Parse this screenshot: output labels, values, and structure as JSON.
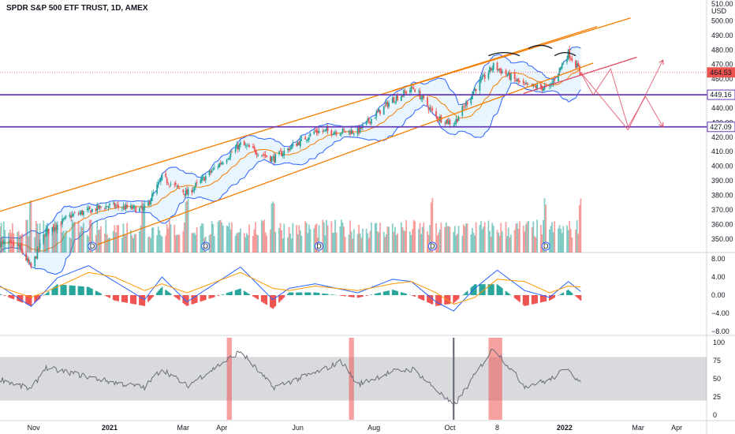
{
  "header": {
    "title": "SPDR S&P 500 ETF TRUST, 1D, AMEX",
    "currency": "USD"
  },
  "price_badges": [
    {
      "value": "464.53",
      "price": 464.53,
      "color": "#ef5350",
      "fill": true
    },
    {
      "value": "449.16",
      "price": 449.16,
      "color": "#673ab7",
      "fill": false
    },
    {
      "value": "427.09",
      "price": 427.09,
      "color": "#673ab7",
      "fill": false
    }
  ],
  "colors": {
    "up": "#26a69a",
    "down": "#ef5350",
    "trend": "#f57c00",
    "channel": "#e04860",
    "level": "#673ab7",
    "bollinger": "#2962ff",
    "macd": "#2962ff",
    "signal": "#ff9800",
    "rsi": "#6a6d78"
  },
  "chart_data": [
    {
      "type": "candlestick",
      "name": "price",
      "title": "SPDR S&P 500 ETF TRUST, 1D, AMEX",
      "ylabel": "USD",
      "ylim": [
        345,
        510
      ],
      "yticks": [
        350,
        360,
        370,
        380,
        390,
        400,
        410,
        420,
        430,
        440,
        450,
        460,
        470,
        480,
        490,
        500
      ],
      "ytick_labels": [
        "350.00",
        "360.00",
        "370.00",
        "380.00",
        "390.00",
        "400.00",
        "410.00",
        "420.00",
        "430.00",
        "440.00",
        "450.00",
        "460.00",
        "470.00",
        "480.00",
        "490.00",
        "500.00"
      ],
      "top_tick_label": "510.00",
      "x_labels": [
        {
          "label": "Nov",
          "date": "2020-11-01"
        },
        {
          "label": "2021",
          "date": "2021-01-01"
        },
        {
          "label": "Mar",
          "date": "2021-03-01"
        },
        {
          "label": "Apr",
          "date": "2021-04-01"
        },
        {
          "label": "Jun",
          "date": "2021-06-01"
        },
        {
          "label": "Aug",
          "date": "2021-08-01"
        },
        {
          "label": "Oct",
          "date": "2021-10-01"
        },
        {
          "label": "8",
          "date": "2021-11-08"
        },
        {
          "label": "2022",
          "date": "2022-01-01"
        },
        {
          "label": "Mar",
          "date": "2022-03-01"
        },
        {
          "label": "Apr",
          "date": "2022-04-01"
        }
      ],
      "x_range": [
        "2020-10-05",
        "2022-04-25"
      ],
      "price_path": [
        [
          "2020-10-05",
          347
        ],
        [
          "2020-10-20",
          345
        ],
        [
          "2020-10-30",
          330
        ],
        [
          "2020-11-10",
          354
        ],
        [
          "2020-12-01",
          366
        ],
        [
          "2020-12-31",
          373
        ],
        [
          "2021-01-29",
          370
        ],
        [
          "2021-02-12",
          392
        ],
        [
          "2021-03-04",
          381
        ],
        [
          "2021-04-16",
          415
        ],
        [
          "2021-05-12",
          405
        ],
        [
          "2021-06-15",
          424
        ],
        [
          "2021-07-19",
          424
        ],
        [
          "2021-08-16",
          446
        ],
        [
          "2021-09-02",
          454
        ],
        [
          "2021-09-20",
          434
        ],
        [
          "2021-10-04",
          429
        ],
        [
          "2021-10-21",
          453
        ],
        [
          "2021-11-05",
          469
        ],
        [
          "2021-11-30",
          455
        ],
        [
          "2021-12-20",
          454
        ],
        [
          "2022-01-04",
          478
        ],
        [
          "2022-01-14",
          464.53
        ]
      ],
      "trend_lines": [
        {
          "name": "upper-trend",
          "from": [
            "2020-10-05",
            369
          ],
          "to": [
            "2022-02-23",
            502
          ]
        },
        {
          "name": "upper-trend-2",
          "from": [
            "2021-08-16",
            452
          ],
          "to": [
            "2022-01-27",
            496
          ]
        },
        {
          "name": "lower-trend",
          "from": [
            "2020-12-22",
            346
          ],
          "to": [
            "2022-01-24",
            471
          ]
        },
        {
          "name": "channel-base",
          "from": [
            "2021-11-29",
            450
          ],
          "to": [
            "2022-02-28",
            475
          ]
        }
      ],
      "projection_path": [
        [
          "2022-01-14",
          464.5
        ],
        [
          "2022-01-24",
          449.0
        ],
        [
          "2022-02-07",
          467.0
        ],
        [
          "2022-02-21",
          427.0
        ],
        [
          "2022-03-07",
          448.0
        ],
        [
          "2022-03-21",
          427.0
        ]
      ],
      "projection_path_2": [
        [
          "2022-01-14",
          464.5
        ],
        [
          "2022-02-21",
          425.0
        ],
        [
          "2022-03-21",
          473.0
        ]
      ],
      "horizontal_levels": [
        449.16,
        427.09
      ],
      "current_price": 464.53,
      "dividend_markers": [
        "2020-12-18",
        "2021-03-19",
        "2021-06-18",
        "2021-09-17",
        "2021-12-17"
      ],
      "dividend_label": "D",
      "head_shoulders_arcs": [
        [
          "2021-11-01",
          "2021-11-26"
        ],
        [
          "2021-12-03",
          "2021-12-22"
        ],
        [
          "2021-12-24",
          "2022-01-10"
        ]
      ]
    },
    {
      "type": "bar",
      "name": "volume",
      "note": "volume bars share the price axis date range; magnitudes in relative units",
      "pattern": "high volume spikes near 2020-10-30, 2021-01-28, 2021-03-04, 2021-05-12, 2021-09-17, 2021-12-17, 2022-01-14"
    },
    {
      "type": "line",
      "name": "macd",
      "ylim": [
        -8,
        8
      ],
      "yticks": [
        8,
        4,
        0,
        -4,
        -8
      ],
      "ytick_labels": [
        "8.00",
        "4.00",
        "0.00",
        "−4.00",
        "−8.00"
      ],
      "series": [
        {
          "role": "macd",
          "values": [
            [
              "2020-10-05",
              2.0
            ],
            [
              "2020-10-30",
              -2.5
            ],
            [
              "2020-11-20",
              3.8
            ],
            [
              "2020-12-15",
              6.5
            ],
            [
              "2021-01-05",
              3.0
            ],
            [
              "2021-01-29",
              -1.0
            ],
            [
              "2021-02-12",
              4.0
            ],
            [
              "2021-03-04",
              -1.5
            ],
            [
              "2021-04-16",
              6.2
            ],
            [
              "2021-05-12",
              -1.0
            ],
            [
              "2021-05-25",
              1.5
            ],
            [
              "2021-06-15",
              2.5
            ],
            [
              "2021-07-19",
              0.5
            ],
            [
              "2021-08-16",
              3.5
            ],
            [
              "2021-08-31",
              3.0
            ],
            [
              "2021-09-20",
              -1.5
            ],
            [
              "2021-10-04",
              -3.5
            ],
            [
              "2021-10-21",
              1.5
            ],
            [
              "2021-11-08",
              5.5
            ],
            [
              "2021-11-30",
              1.0
            ],
            [
              "2021-12-20",
              -0.5
            ],
            [
              "2022-01-04",
              3.0
            ],
            [
              "2022-01-14",
              0.8
            ]
          ]
        },
        {
          "role": "signal",
          "values": [
            [
              "2020-10-05",
              1.8
            ],
            [
              "2020-10-30",
              -0.5
            ],
            [
              "2020-11-20",
              1.8
            ],
            [
              "2020-12-15",
              5.0
            ],
            [
              "2021-01-05",
              4.0
            ],
            [
              "2021-01-29",
              1.0
            ],
            [
              "2021-02-12",
              2.5
            ],
            [
              "2021-03-04",
              0.5
            ],
            [
              "2021-04-16",
              5.0
            ],
            [
              "2021-05-12",
              1.5
            ],
            [
              "2021-05-25",
              1.0
            ],
            [
              "2021-06-15",
              2.0
            ],
            [
              "2021-07-19",
              1.0
            ],
            [
              "2021-08-16",
              2.5
            ],
            [
              "2021-08-31",
              3.0
            ],
            [
              "2021-09-20",
              0.5
            ],
            [
              "2021-10-04",
              -2.0
            ],
            [
              "2021-10-21",
              -0.5
            ],
            [
              "2021-11-08",
              3.5
            ],
            [
              "2021-11-30",
              3.0
            ],
            [
              "2021-12-20",
              0.5
            ],
            [
              "2022-01-04",
              2.0
            ],
            [
              "2022-01-14",
              1.8
            ]
          ]
        }
      ]
    },
    {
      "type": "line",
      "name": "rsi",
      "ylim": [
        0,
        100
      ],
      "yticks": [
        100,
        75,
        50,
        25,
        0
      ],
      "ytick_labels": [
        "100",
        "75",
        "50",
        "25",
        "0"
      ],
      "band": [
        20,
        80
      ],
      "values": [
        [
          "2020-10-05",
          50
        ],
        [
          "2020-10-30",
          35
        ],
        [
          "2020-11-10",
          65
        ],
        [
          "2020-12-01",
          58
        ],
        [
          "2021-01-04",
          45
        ],
        [
          "2021-01-29",
          38
        ],
        [
          "2021-02-12",
          64
        ],
        [
          "2021-03-04",
          40
        ],
        [
          "2021-04-16",
          88
        ],
        [
          "2021-05-12",
          38
        ],
        [
          "2021-06-15",
          58
        ],
        [
          "2021-07-06",
          74
        ],
        [
          "2021-07-19",
          42
        ],
        [
          "2021-08-16",
          60
        ],
        [
          "2021-09-02",
          63
        ],
        [
          "2021-09-20",
          35
        ],
        [
          "2021-10-04",
          12
        ],
        [
          "2021-10-21",
          55
        ],
        [
          "2021-11-05",
          93
        ],
        [
          "2021-11-30",
          40
        ],
        [
          "2021-12-20",
          48
        ],
        [
          "2022-01-04",
          66
        ],
        [
          "2022-01-14",
          42
        ]
      ],
      "highlight_ranges": [
        [
          "2021-04-05",
          "2021-04-09"
        ],
        [
          "2021-07-12",
          "2021-07-16"
        ],
        [
          "2021-11-01",
          "2021-11-12"
        ]
      ],
      "marker_line": "2021-10-04"
    }
  ]
}
